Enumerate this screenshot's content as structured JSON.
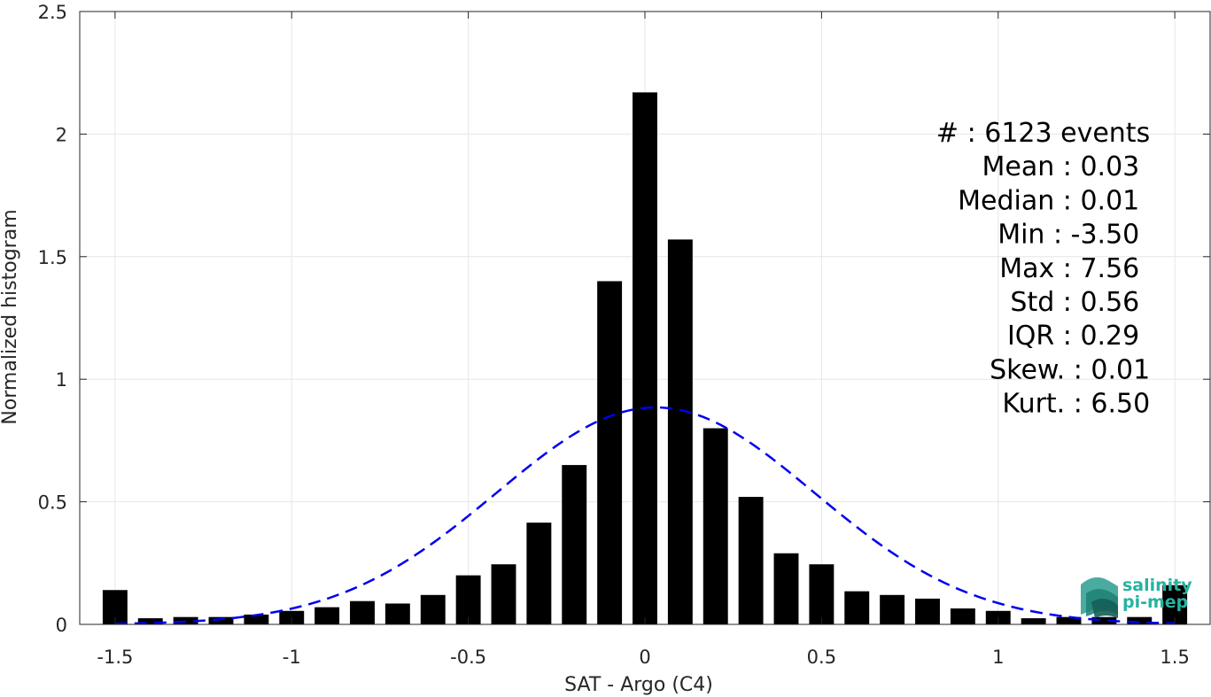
{
  "chart_data": {
    "type": "bar",
    "xlabel": "SAT - Argo (C4)",
    "ylabel": "Normalized histogram",
    "xlim": [
      -1.6,
      1.6
    ],
    "ylim": [
      0,
      2.5
    ],
    "grid": true,
    "x_ticks": [
      "-1.5",
      "-1",
      "-0.5",
      "0",
      "0.5",
      "1",
      "1.5"
    ],
    "y_ticks": [
      "0",
      "0.5",
      "1",
      "1.5",
      "2",
      "2.5"
    ],
    "bars": {
      "x": [
        -1.5,
        -1.4,
        -1.3,
        -1.2,
        -1.1,
        -1.0,
        -0.9,
        -0.8,
        -0.7,
        -0.6,
        -0.5,
        -0.4,
        -0.3,
        -0.2,
        -0.1,
        0.0,
        0.1,
        0.2,
        0.3,
        0.4,
        0.5,
        0.6,
        0.7,
        0.8,
        0.9,
        1.0,
        1.1,
        1.2,
        1.3,
        1.4,
        1.5
      ],
      "values": [
        0.14,
        0.025,
        0.03,
        0.03,
        0.04,
        0.055,
        0.07,
        0.095,
        0.085,
        0.12,
        0.2,
        0.245,
        0.415,
        0.65,
        1.4,
        2.17,
        1.57,
        0.8,
        0.52,
        0.29,
        0.245,
        0.135,
        0.12,
        0.105,
        0.065,
        0.055,
        0.025,
        0.03,
        0.03,
        0.03,
        0.16
      ],
      "width": 0.07,
      "color": "#000000"
    },
    "fit_curve": {
      "style": "dashed",
      "color": "#0000ee",
      "mean": 0.03,
      "std": 0.45,
      "peak": 0.885,
      "x_range": [
        -1.5,
        1.5
      ]
    },
    "stats": [
      {
        "label": "#  : 6123 events",
        "anchor": "end",
        "x_val": 1.43
      },
      {
        "label": "Mean : 0.03",
        "anchor": "end",
        "x_val": 1.4
      },
      {
        "label": "Median : 0.01",
        "anchor": "end",
        "x_val": 1.4
      },
      {
        "label": "Min : -3.50",
        "anchor": "end",
        "x_val": 1.4
      },
      {
        "label": "Max : 7.56",
        "anchor": "end",
        "x_val": 1.4
      },
      {
        "label": "Std : 0.56",
        "anchor": "end",
        "x_val": 1.4
      },
      {
        "label": "IQR : 0.29",
        "anchor": "end",
        "x_val": 1.4
      },
      {
        "label": "Skew. : 0.01",
        "anchor": "end",
        "x_val": 1.43
      },
      {
        "label": "Kurt. : 6.50",
        "anchor": "end",
        "x_val": 1.43
      }
    ]
  },
  "logo": {
    "line1": "salinity",
    "line2": "pi-mep",
    "color": "#26b3a0"
  }
}
